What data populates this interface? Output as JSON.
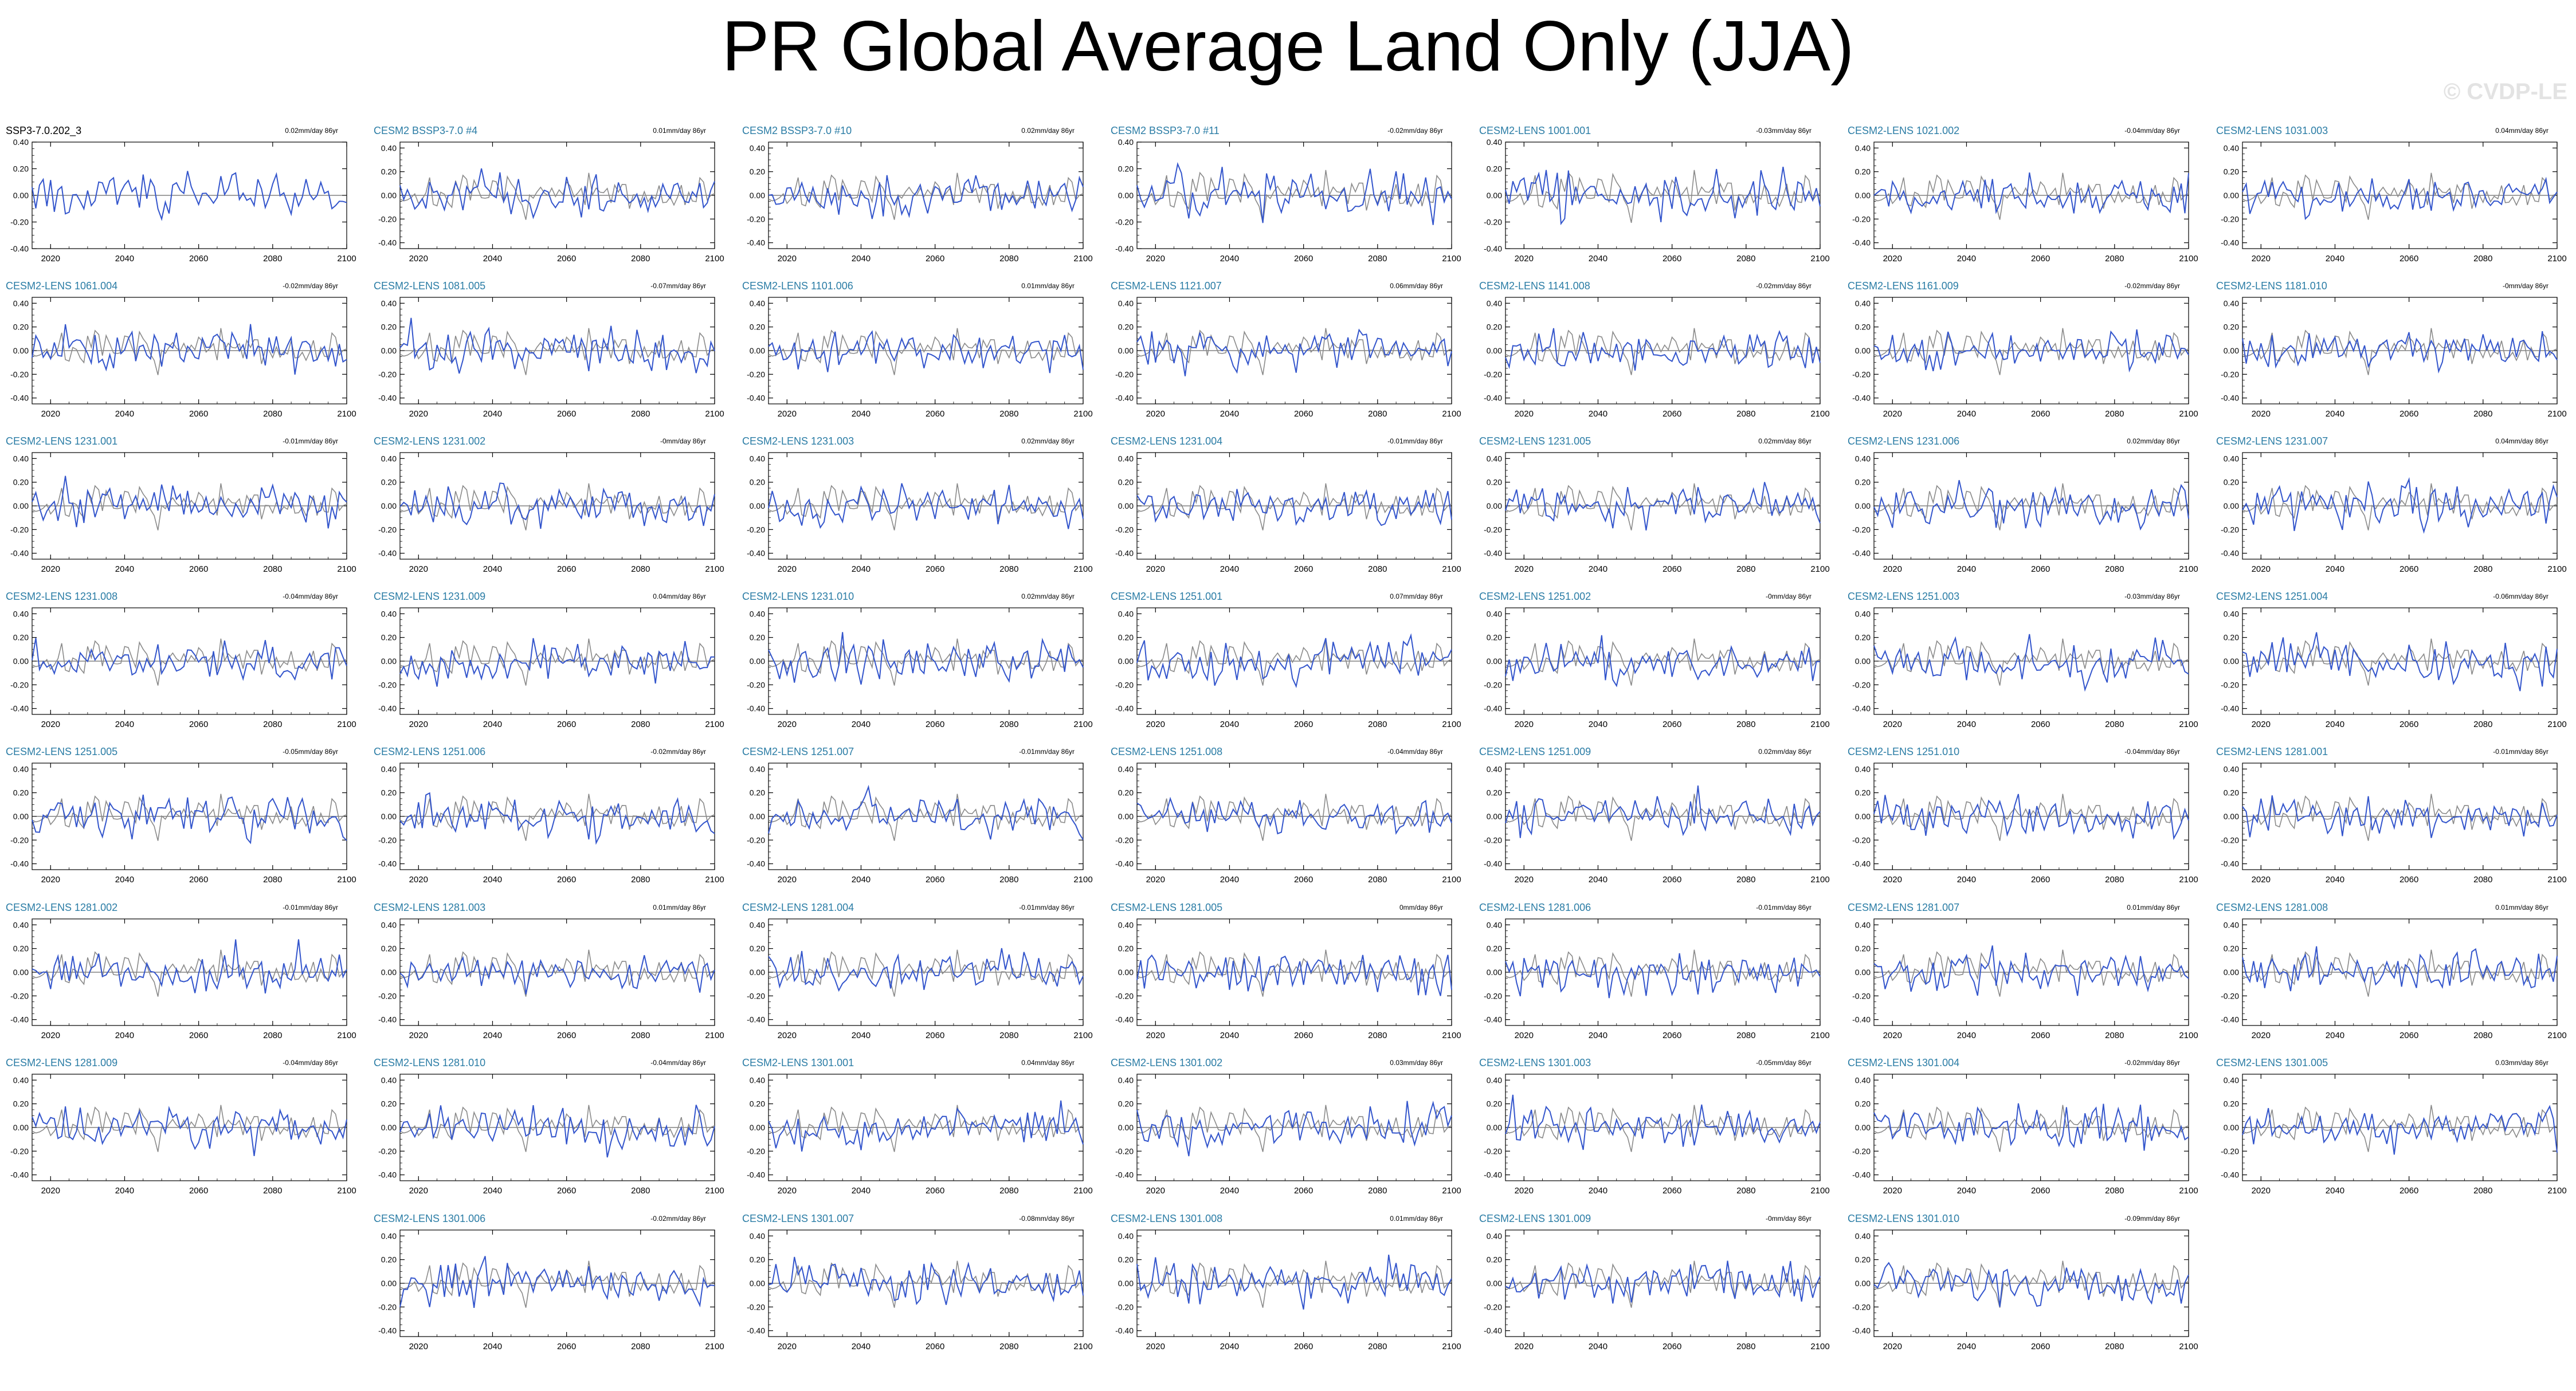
{
  "title": "PR Global Average Land Only (JJA)",
  "watermark": "© CVDP-LE",
  "colors": {
    "model": "#3355cc",
    "observed": "#8a8a8a",
    "panel_title": "#2a7ca5"
  },
  "chart_data": {
    "type": "line",
    "x_ticks": [
      2020,
      2040,
      2060,
      2080,
      2100
    ],
    "xlim": [
      2015,
      2100
    ],
    "y_ticks": [
      "0.40",
      "0.20",
      "0.00",
      "-0.20",
      "-0.40"
    ],
    "ylim": [
      -0.45,
      0.45
    ],
    "trend_unit": "mm/day 86yr",
    "panels": [
      {
        "title": "SSP3-7.0.202_3",
        "trend": "0.02mm/day 86yr",
        "title_color": "black",
        "ylim": [
          -0.4,
          0.4
        ],
        "y_ticks": [
          "0.40",
          "0.20",
          "0.00",
          "-0.20",
          "-0.40"
        ]
      },
      {
        "title": "CESM2 BSSP3-7.0 #4",
        "trend": "0.01mm/day 86yr"
      },
      {
        "title": "CESM2 BSSP3-7.0 #10",
        "trend": "0.02mm/day 86yr"
      },
      {
        "title": "CESM2 BSSP3-7.0 #11",
        "trend": "-0.02mm/day 86yr",
        "ylim": [
          -0.4,
          0.4
        ],
        "y_ticks": [
          "0.40",
          "0.20",
          "0.00",
          "-0.20",
          "-0.40"
        ]
      },
      {
        "title": "CESM2-LENS 1001.001",
        "trend": "-0.03mm/day 86yr",
        "ylim": [
          -0.4,
          0.4
        ],
        "y_ticks": [
          "0.40",
          "0.20",
          "0.00",
          "-0.20",
          "-0.40"
        ]
      },
      {
        "title": "CESM2-LENS 1021.002",
        "trend": "-0.04mm/day 86yr"
      },
      {
        "title": "CESM2-LENS 1031.003",
        "trend": "0.04mm/day 86yr"
      },
      {
        "title": "CESM2-LENS 1061.004",
        "trend": "-0.02mm/day 86yr"
      },
      {
        "title": "CESM2-LENS 1081.005",
        "trend": "-0.07mm/day 86yr"
      },
      {
        "title": "CESM2-LENS 1101.006",
        "trend": "0.01mm/day 86yr"
      },
      {
        "title": "CESM2-LENS 1121.007",
        "trend": "0.06mm/day 86yr"
      },
      {
        "title": "CESM2-LENS 1141.008",
        "trend": "-0.02mm/day 86yr"
      },
      {
        "title": "CESM2-LENS 1161.009",
        "trend": "-0.02mm/day 86yr"
      },
      {
        "title": "CESM2-LENS 1181.010",
        "trend": "-0mm/day 86yr"
      },
      {
        "title": "CESM2-LENS 1231.001",
        "trend": "-0.01mm/day 86yr"
      },
      {
        "title": "CESM2-LENS 1231.002",
        "trend": "-0mm/day 86yr"
      },
      {
        "title": "CESM2-LENS 1231.003",
        "trend": "0.02mm/day 86yr"
      },
      {
        "title": "CESM2-LENS 1231.004",
        "trend": "-0.01mm/day 86yr"
      },
      {
        "title": "CESM2-LENS 1231.005",
        "trend": "0.02mm/day 86yr"
      },
      {
        "title": "CESM2-LENS 1231.006",
        "trend": "0.02mm/day 86yr"
      },
      {
        "title": "CESM2-LENS 1231.007",
        "trend": "0.04mm/day 86yr"
      },
      {
        "title": "CESM2-LENS 1231.008",
        "trend": "-0.04mm/day 86yr"
      },
      {
        "title": "CESM2-LENS 1231.009",
        "trend": "0.04mm/day 86yr"
      },
      {
        "title": "CESM2-LENS 1231.010",
        "trend": "0.02mm/day 86yr"
      },
      {
        "title": "CESM2-LENS 1251.001",
        "trend": "0.07mm/day 86yr"
      },
      {
        "title": "CESM2-LENS 1251.002",
        "trend": "-0mm/day 86yr"
      },
      {
        "title": "CESM2-LENS 1251.003",
        "trend": "-0.03mm/day 86yr"
      },
      {
        "title": "CESM2-LENS 1251.004",
        "trend": "-0.06mm/day 86yr"
      },
      {
        "title": "CESM2-LENS 1251.005",
        "trend": "-0.05mm/day 86yr"
      },
      {
        "title": "CESM2-LENS 1251.006",
        "trend": "-0.02mm/day 86yr"
      },
      {
        "title": "CESM2-LENS 1251.007",
        "trend": "-0.01mm/day 86yr"
      },
      {
        "title": "CESM2-LENS 1251.008",
        "trend": "-0.04mm/day 86yr"
      },
      {
        "title": "CESM2-LENS 1251.009",
        "trend": "0.02mm/day 86yr"
      },
      {
        "title": "CESM2-LENS 1251.010",
        "trend": "-0.04mm/day 86yr"
      },
      {
        "title": "CESM2-LENS 1281.001",
        "trend": "-0.01mm/day 86yr"
      },
      {
        "title": "CESM2-LENS 1281.002",
        "trend": "-0.01mm/day 86yr"
      },
      {
        "title": "CESM2-LENS 1281.003",
        "trend": "0.01mm/day 86yr"
      },
      {
        "title": "CESM2-LENS 1281.004",
        "trend": "-0.01mm/day 86yr"
      },
      {
        "title": "CESM2-LENS 1281.005",
        "trend": "0mm/day 86yr"
      },
      {
        "title": "CESM2-LENS 1281.006",
        "trend": "-0.01mm/day 86yr"
      },
      {
        "title": "CESM2-LENS 1281.007",
        "trend": "0.01mm/day 86yr"
      },
      {
        "title": "CESM2-LENS 1281.008",
        "trend": "0.01mm/day 86yr"
      },
      {
        "title": "CESM2-LENS 1281.009",
        "trend": "-0.04mm/day 86yr"
      },
      {
        "title": "CESM2-LENS 1281.010",
        "trend": "-0.04mm/day 86yr"
      },
      {
        "title": "CESM2-LENS 1301.001",
        "trend": "0.04mm/day 86yr"
      },
      {
        "title": "CESM2-LENS 1301.002",
        "trend": "0.03mm/day 86yr"
      },
      {
        "title": "CESM2-LENS 1301.003",
        "trend": "-0.05mm/day 86yr"
      },
      {
        "title": "CESM2-LENS 1301.004",
        "trend": "-0.02mm/day 86yr"
      },
      {
        "title": "CESM2-LENS 1301.005",
        "trend": "0.03mm/day 86yr"
      },
      {
        "title": "CESM2-LENS 1301.006",
        "trend": "-0.02mm/day 86yr"
      },
      {
        "title": "CESM2-LENS 1301.007",
        "trend": "-0.08mm/day 86yr"
      },
      {
        "title": "CESM2-LENS 1301.008",
        "trend": "0.01mm/day 86yr"
      },
      {
        "title": "CESM2-LENS 1301.009",
        "trend": "-0mm/day 86yr"
      },
      {
        "title": "CESM2-LENS 1301.010",
        "trend": "-0.09mm/day 86yr"
      }
    ]
  }
}
